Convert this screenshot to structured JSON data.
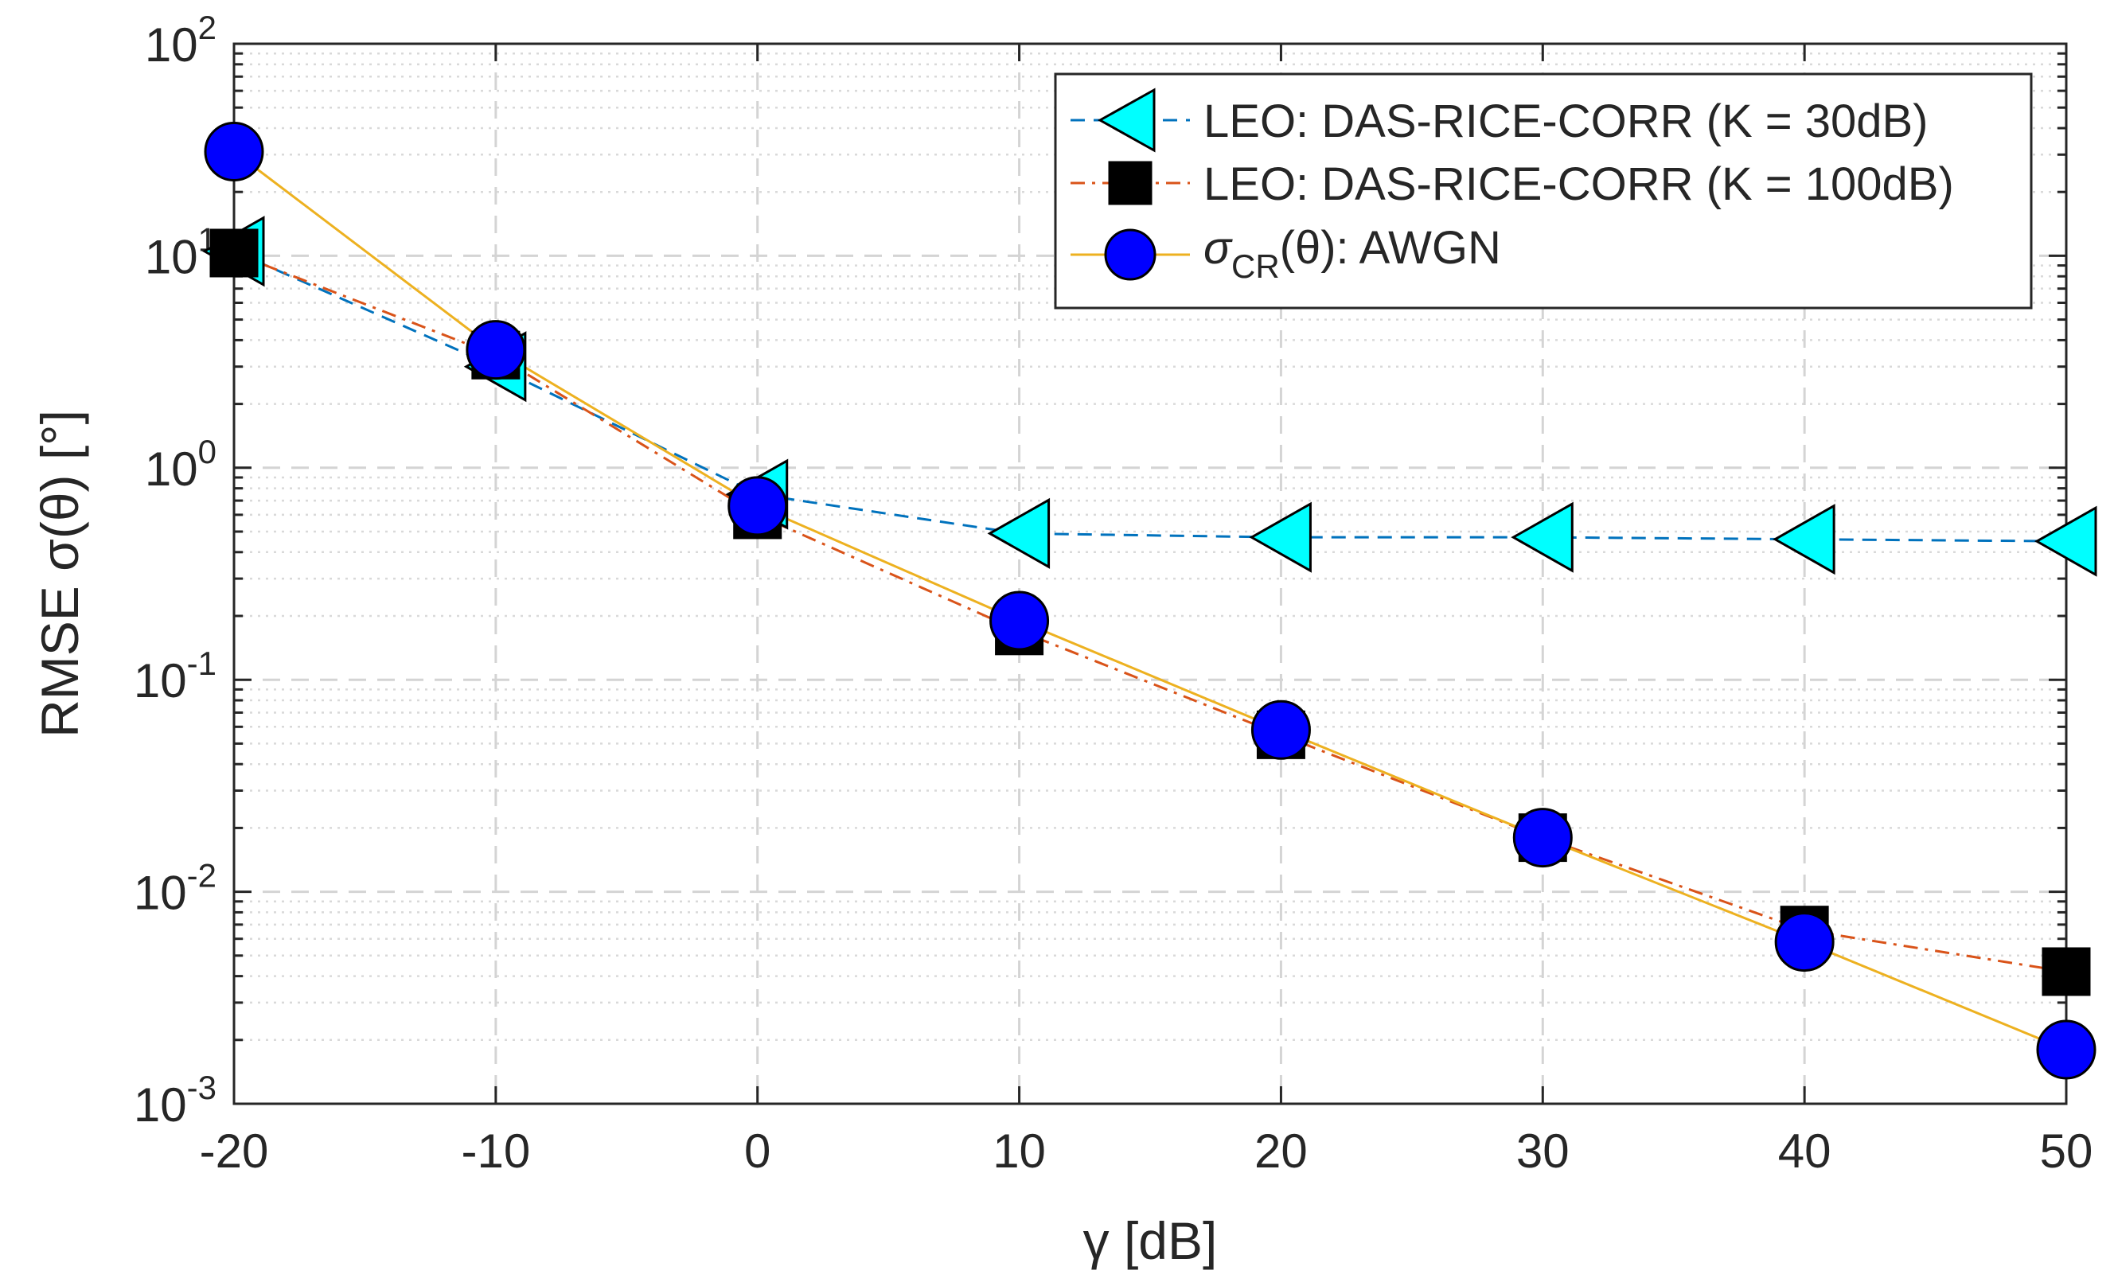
{
  "chart_data": {
    "type": "line",
    "xlabel": "γ [dB]",
    "ylabel": "RMSE σ(θ) [°]",
    "yscale": "log",
    "xlim": [
      -20,
      50
    ],
    "ylim": [
      0.001,
      100
    ],
    "grid": true,
    "minor_grid": true,
    "legend_position": "top-right",
    "x": [
      -20,
      -10,
      0,
      10,
      20,
      30,
      40,
      50
    ],
    "x_tick_labels": [
      "-20",
      "-10",
      "0",
      "10",
      "20",
      "30",
      "40",
      "50"
    ],
    "y_ticks": [
      {
        "base": "10",
        "exp": "-3",
        "value": 0.001
      },
      {
        "base": "10",
        "exp": "-2",
        "value": 0.01
      },
      {
        "base": "10",
        "exp": "-1",
        "value": 0.1
      },
      {
        "base": "10",
        "exp": "0",
        "value": 1
      },
      {
        "base": "10",
        "exp": "1",
        "value": 10
      },
      {
        "base": "10",
        "exp": "2",
        "value": 100
      }
    ],
    "series": [
      {
        "name": "LEO: DAS-RICE-CORR (K = 30dB)",
        "values": [
          10.5,
          3.0,
          0.75,
          0.49,
          0.47,
          0.47,
          0.46,
          0.45
        ],
        "color": "#0072bd",
        "marker": "triangle-left",
        "marker_fill": "#00ffff",
        "line_style": "dashed"
      },
      {
        "name": "LEO: DAS-RICE-CORR (K = 100dB)",
        "values": [
          10.3,
          3.4,
          0.6,
          0.17,
          0.055,
          0.018,
          0.0066,
          0.0042
        ],
        "color": "#d95319",
        "marker": "square",
        "marker_fill": "#000000",
        "line_style": "dash-dot"
      },
      {
        "name_main": "σ",
        "name_sub": "CR",
        "name_rest": "(θ): AWGN",
        "values": [
          31,
          3.6,
          0.66,
          0.19,
          0.058,
          0.018,
          0.0058,
          0.0018
        ],
        "color": "#edb120",
        "marker": "circle",
        "marker_fill": "#0000ff",
        "line_style": "solid"
      }
    ]
  }
}
